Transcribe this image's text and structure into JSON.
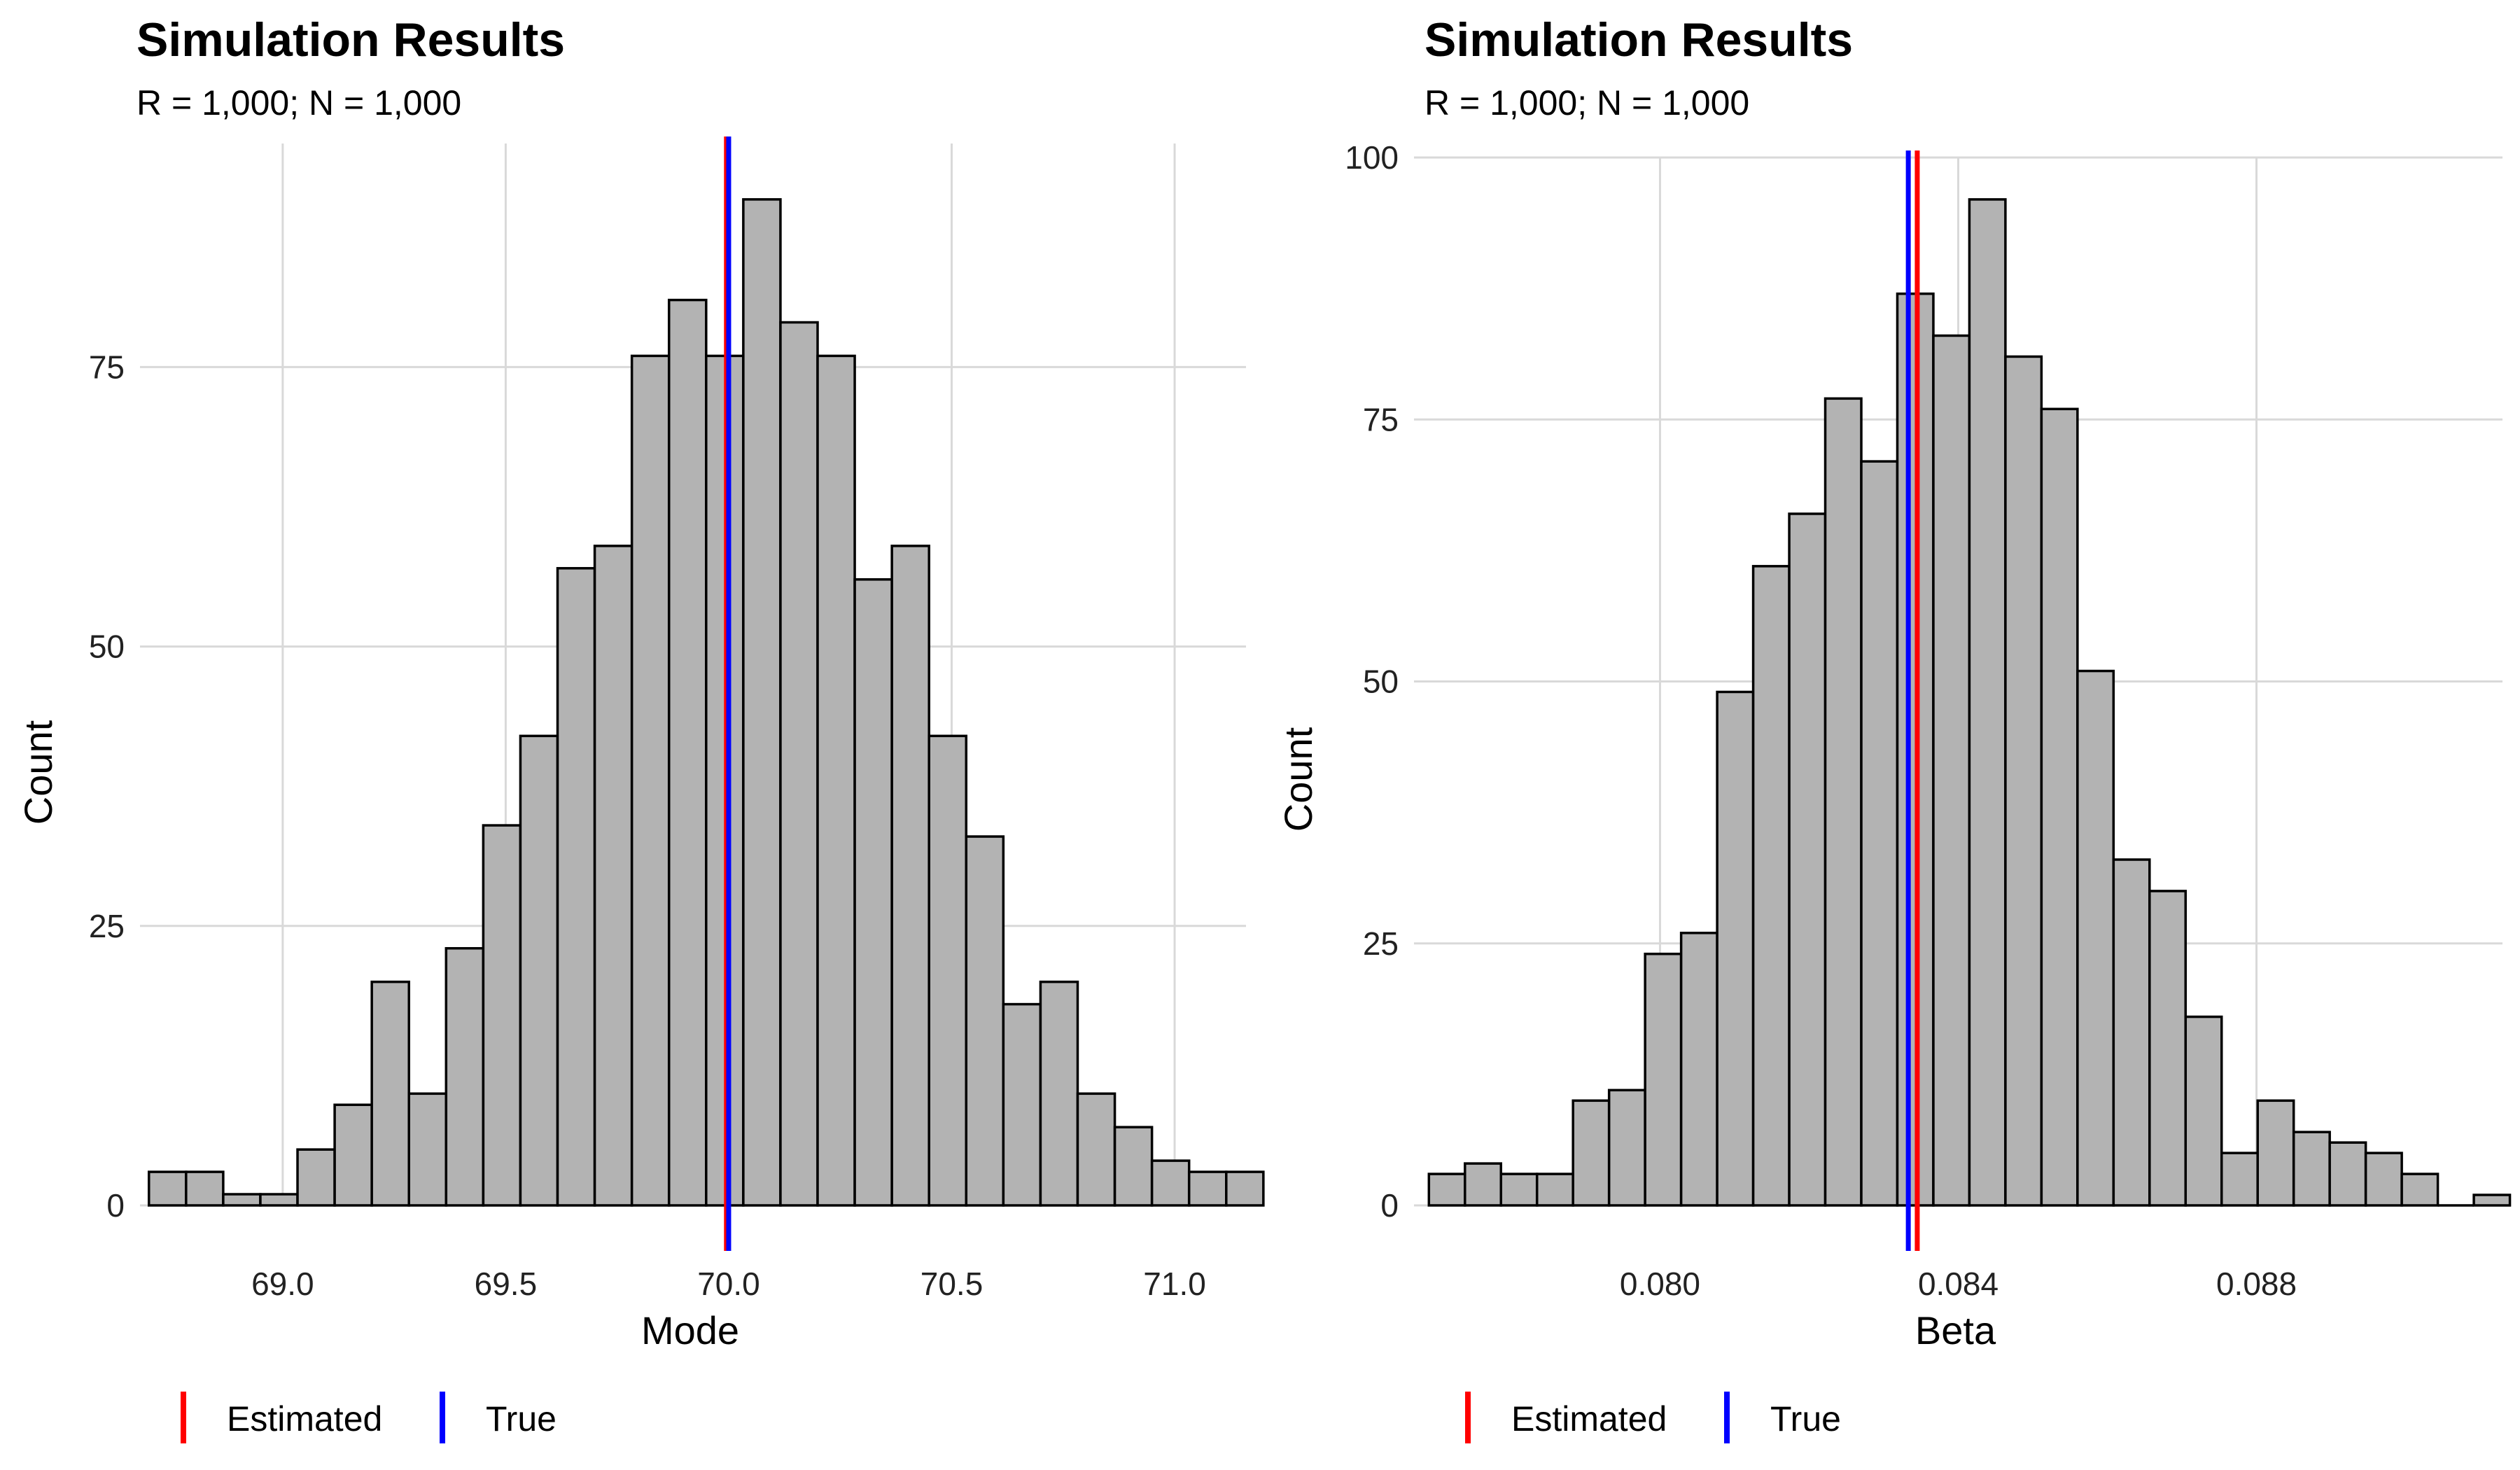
{
  "chart_data": [
    {
      "type": "bar",
      "title": "Simulation Results",
      "subtitle": "R = 1,000; N = 1,000",
      "xlabel": "Mode",
      "ylabel": "Count",
      "xlim": [
        68.68,
        71.16
      ],
      "ylim": [
        0,
        95
      ],
      "x_ticks": [
        69.0,
        69.5,
        70.0,
        70.5,
        71.0
      ],
      "x_tick_labels": [
        "69.0",
        "69.5",
        "70.0",
        "70.5",
        "71.0"
      ],
      "y_ticks": [
        0,
        25,
        50,
        75
      ],
      "y_tick_labels": [
        "0",
        "25",
        "50",
        "75"
      ],
      "grid": true,
      "bin_start": 68.7,
      "bin_width": 0.0833,
      "counts": [
        3,
        3,
        1,
        1,
        5,
        9,
        20,
        10,
        23,
        34,
        42,
        57,
        59,
        76,
        81,
        76,
        90,
        79,
        76,
        56,
        59,
        42,
        33,
        18,
        20,
        10,
        7,
        4,
        3,
        3
      ],
      "vlines": [
        {
          "name": "Estimated",
          "x": 69.995,
          "color": "#ff0000"
        },
        {
          "name": "True",
          "x": 70.0,
          "color": "#0000ff"
        }
      ],
      "legend_position": "bottom-left"
    },
    {
      "type": "bar",
      "title": "Simulation Results",
      "subtitle": "R = 1,000; N = 1,000",
      "xlabel": "Beta",
      "ylabel": "Count",
      "xlim": [
        0.0767,
        0.0913
      ],
      "ylim": [
        0,
        100
      ],
      "x_ticks": [
        0.08,
        0.084,
        0.088
      ],
      "x_tick_labels": [
        "0.080",
        "0.084",
        "0.088"
      ],
      "y_ticks": [
        0,
        25,
        50,
        75,
        100
      ],
      "y_tick_labels": [
        "0",
        "25",
        "50",
        "75",
        "100"
      ],
      "grid": true,
      "bin_start": 0.0769,
      "bin_width": 0.0004833,
      "counts": [
        3,
        4,
        3,
        3,
        10,
        11,
        24,
        26,
        49,
        61,
        66,
        77,
        71,
        87,
        83,
        96,
        81,
        76,
        51,
        33,
        30,
        18,
        5,
        10,
        7,
        6,
        5,
        3,
        0,
        1
      ],
      "vlines": [
        {
          "name": "True",
          "x": 0.08333,
          "color": "#0000ff"
        },
        {
          "name": "Estimated",
          "x": 0.08345,
          "color": "#ff0000"
        }
      ],
      "legend_position": "bottom-left"
    }
  ],
  "colors": {
    "bar_fill": "#b3b3b3",
    "bar_stroke": "#000000",
    "grid": "#d9d9d9",
    "estimated": "#ff0000",
    "true": "#0000ff"
  },
  "legend": [
    {
      "label": "Estimated",
      "color": "#ff0000"
    },
    {
      "label": "True",
      "color": "#0000ff"
    }
  ]
}
